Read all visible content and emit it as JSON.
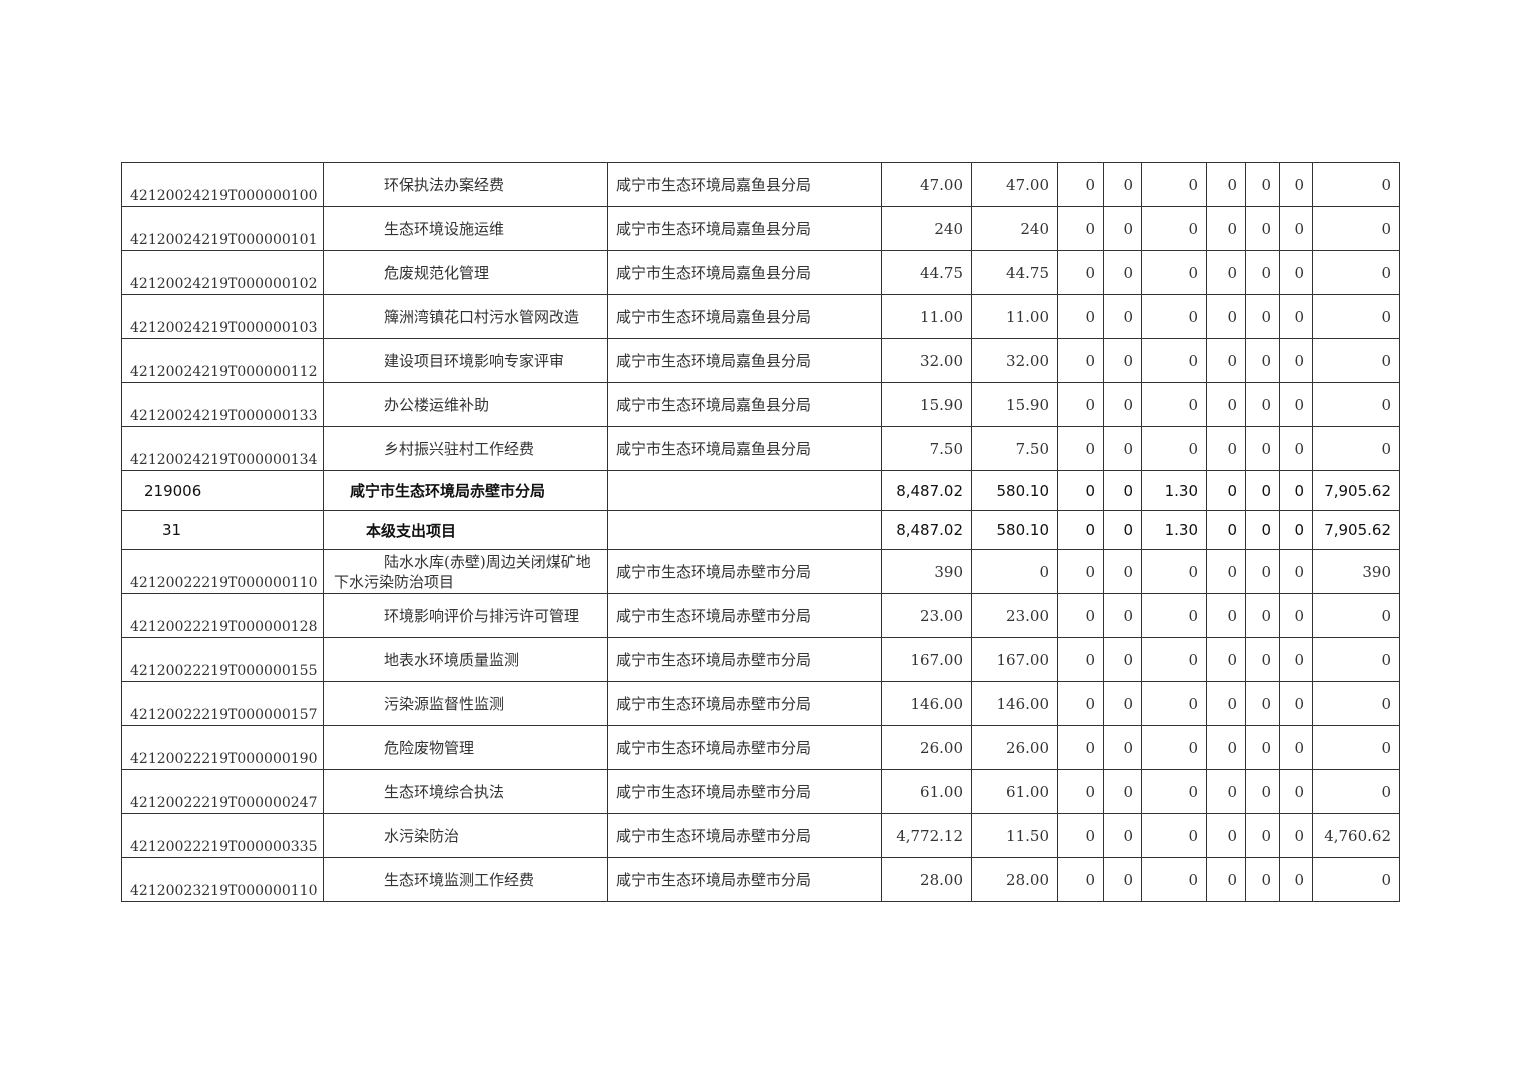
{
  "rows": [
    {
      "code": "42120024219T000000100",
      "name": "环保执法办案经费",
      "dept": "咸宁市生态环境局嘉鱼县分局",
      "values": [
        "47.00",
        "47.00",
        "0",
        "0",
        "0",
        "0",
        "0",
        "0",
        "0"
      ]
    },
    {
      "code": "42120024219T000000101",
      "name": "生态环境设施运维",
      "dept": "咸宁市生态环境局嘉鱼县分局",
      "values": [
        "240",
        "240",
        "0",
        "0",
        "0",
        "0",
        "0",
        "0",
        "0"
      ]
    },
    {
      "code": "42120024219T000000102",
      "name": "危废规范化管理",
      "dept": "咸宁市生态环境局嘉鱼县分局",
      "values": [
        "44.75",
        "44.75",
        "0",
        "0",
        "0",
        "0",
        "0",
        "0",
        "0"
      ]
    },
    {
      "code": "42120024219T000000103",
      "name": "簰洲湾镇花口村污水管网改造",
      "dept": "咸宁市生态环境局嘉鱼县分局",
      "values": [
        "11.00",
        "11.00",
        "0",
        "0",
        "0",
        "0",
        "0",
        "0",
        "0"
      ]
    },
    {
      "code": "42120024219T000000112",
      "name": "建设项目环境影响专家评审",
      "dept": "咸宁市生态环境局嘉鱼县分局",
      "values": [
        "32.00",
        "32.00",
        "0",
        "0",
        "0",
        "0",
        "0",
        "0",
        "0"
      ]
    },
    {
      "code": "42120024219T000000133",
      "name": "办公楼运维补助",
      "dept": "咸宁市生态环境局嘉鱼县分局",
      "values": [
        "15.90",
        "15.90",
        "0",
        "0",
        "0",
        "0",
        "0",
        "0",
        "0"
      ]
    },
    {
      "code": "42120024219T000000134",
      "name": "乡村振兴驻村工作经费",
      "dept": "咸宁市生态环境局嘉鱼县分局",
      "values": [
        "7.50",
        "7.50",
        "0",
        "0",
        "0",
        "0",
        "0",
        "0",
        "0"
      ]
    },
    {
      "type": "sum",
      "code": "219006",
      "name": "咸宁市生态环境局赤壁市分局",
      "dept": "",
      "values": [
        "8,487.02",
        "580.10",
        "0",
        "0",
        "1.30",
        "0",
        "0",
        "0",
        "7,905.62"
      ]
    },
    {
      "type": "sum2",
      "code": "31",
      "name": "本级支出项目",
      "dept": "",
      "values": [
        "8,487.02",
        "580.10",
        "0",
        "0",
        "1.30",
        "0",
        "0",
        "0",
        "7,905.62"
      ]
    },
    {
      "code": "42120022219T000000110",
      "name": "陆水水库(赤壁)周边关闭煤矿地下水污染防治项目",
      "dept": "咸宁市生态环境局赤壁市分局",
      "values": [
        "390",
        "0",
        "0",
        "0",
        "0",
        "0",
        "0",
        "0",
        "390"
      ],
      "wrap": true
    },
    {
      "code": "42120022219T000000128",
      "name": "环境影响评价与排污许可管理",
      "dept": "咸宁市生态环境局赤壁市分局",
      "values": [
        "23.00",
        "23.00",
        "0",
        "0",
        "0",
        "0",
        "0",
        "0",
        "0"
      ]
    },
    {
      "code": "42120022219T000000155",
      "name": "地表水环境质量监测",
      "dept": "咸宁市生态环境局赤壁市分局",
      "values": [
        "167.00",
        "167.00",
        "0",
        "0",
        "0",
        "0",
        "0",
        "0",
        "0"
      ]
    },
    {
      "code": "42120022219T000000157",
      "name": "污染源监督性监测",
      "dept": "咸宁市生态环境局赤壁市分局",
      "values": [
        "146.00",
        "146.00",
        "0",
        "0",
        "0",
        "0",
        "0",
        "0",
        "0"
      ]
    },
    {
      "code": "42120022219T000000190",
      "name": "危险废物管理",
      "dept": "咸宁市生态环境局赤壁市分局",
      "values": [
        "26.00",
        "26.00",
        "0",
        "0",
        "0",
        "0",
        "0",
        "0",
        "0"
      ]
    },
    {
      "code": "42120022219T000000247",
      "name": "生态环境综合执法",
      "dept": "咸宁市生态环境局赤壁市分局",
      "values": [
        "61.00",
        "61.00",
        "0",
        "0",
        "0",
        "0",
        "0",
        "0",
        "0"
      ]
    },
    {
      "code": "42120022219T000000335",
      "name": "水污染防治",
      "dept": "咸宁市生态环境局赤壁市分局",
      "values": [
        "4,772.12",
        "11.50",
        "0",
        "0",
        "0",
        "0",
        "0",
        "0",
        "4,760.62"
      ]
    },
    {
      "code": "42120023219T000000110",
      "name": "生态环境监测工作经费",
      "dept": "咸宁市生态环境局赤壁市分局",
      "values": [
        "28.00",
        "28.00",
        "0",
        "0",
        "0",
        "0",
        "0",
        "0",
        "0"
      ]
    }
  ]
}
